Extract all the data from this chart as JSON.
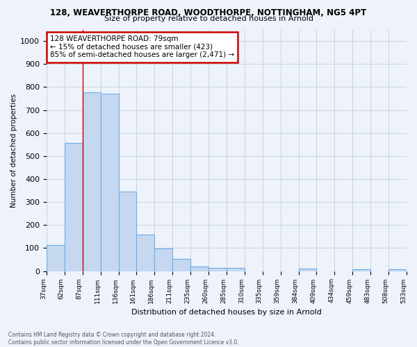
{
  "title1": "128, WEAVERTHORPE ROAD, WOODTHORPE, NOTTINGHAM, NG5 4PT",
  "title2": "Size of property relative to detached houses in Arnold",
  "xlabel": "Distribution of detached houses by size in Arnold",
  "ylabel": "Number of detached properties",
  "categories": [
    "37sqm",
    "62sqm",
    "87sqm",
    "111sqm",
    "136sqm",
    "161sqm",
    "186sqm",
    "211sqm",
    "235sqm",
    "260sqm",
    "285sqm",
    "310sqm",
    "335sqm",
    "359sqm",
    "384sqm",
    "409sqm",
    "434sqm",
    "459sqm",
    "483sqm",
    "508sqm",
    "533sqm"
  ],
  "values": [
    113,
    557,
    778,
    770,
    347,
    160,
    97,
    53,
    20,
    13,
    13,
    0,
    0,
    0,
    10,
    0,
    0,
    9,
    0,
    9
  ],
  "bar_color": "#c5d8f0",
  "bar_edge_color": "#6aaee8",
  "grid_color": "#c0cfe0",
  "background_color": "#eef2fa",
  "vline_color": "#cc0000",
  "annotation_text": "128 WEAVERTHORPE ROAD: 79sqm\n← 15% of detached houses are smaller (423)\n85% of semi-detached houses are larger (2,471) →",
  "annotation_box_color": "#cc0000",
  "footer": "Contains HM Land Registry data © Crown copyright and database right 2024.\nContains public sector information licensed under the Open Government Licence v3.0.",
  "ylim": [
    0,
    1050
  ],
  "yticks": [
    0,
    100,
    200,
    300,
    400,
    500,
    600,
    700,
    800,
    900,
    1000
  ]
}
